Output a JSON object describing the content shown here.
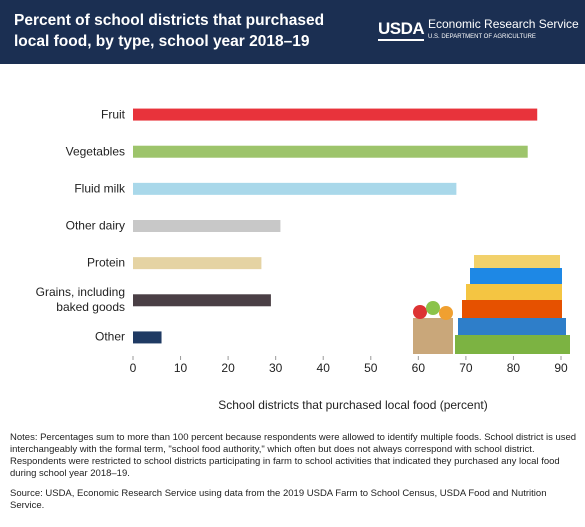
{
  "logo": {
    "mark": "USDA",
    "name": "Economic Research Service",
    "dept": "U.S. DEPARTMENT OF AGRICULTURE"
  },
  "chart_data": {
    "type": "bar",
    "orientation": "horizontal",
    "title": "Percent of school districts that purchased local food, by type, school year 2018–19",
    "categories": [
      "Fruit",
      "Vegetables",
      "Fluid milk",
      "Other dairy",
      "Protein",
      "Grains, including baked goods",
      "Other"
    ],
    "values": [
      85,
      83,
      68,
      31,
      27,
      29,
      6
    ],
    "colors": [
      "#e8333b",
      "#9dc46b",
      "#a9d8ea",
      "#c8c8c8",
      "#e5d3a3",
      "#4a3f45",
      "#1f3a63"
    ],
    "xlim": [
      0,
      90
    ],
    "xticks": [
      0,
      10,
      20,
      30,
      40,
      50,
      60,
      70,
      80,
      90
    ],
    "xlabel": "School districts that purchased local food (percent)",
    "notes": "Notes: Percentages sum to more than 100 percent because respondents were allowed to identify multiple foods. School district is used interchangeably with the formal term, \"school food authority,\" which often but does not always correspond with school district. Respondents were restricted to school districts participating in farm to school activities that indicated they purchased any local food during school year 2018–19.",
    "source": "Source: USDA, Economic Research Service using data from the 2019 USDA Farm to School Census, USDA Food and Nutrition Service."
  }
}
